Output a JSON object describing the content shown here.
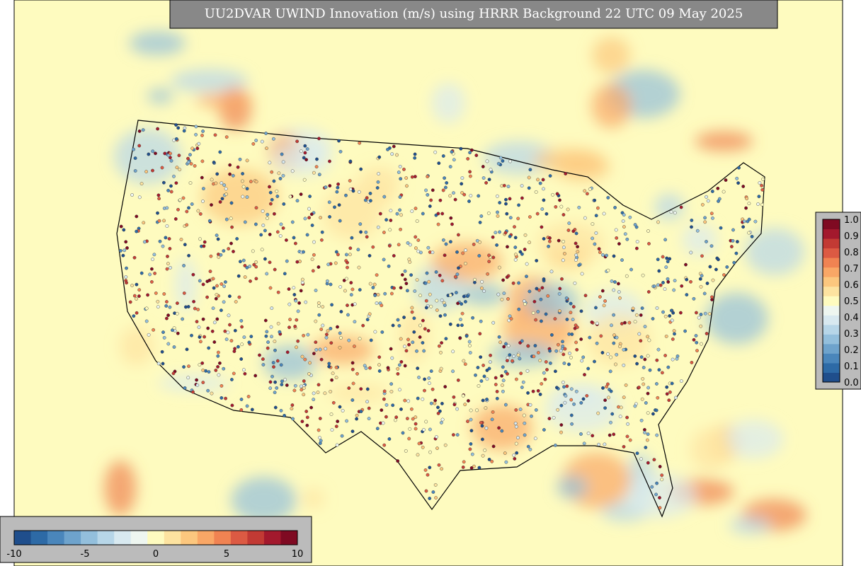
{
  "title": "UU2DVAR UWIND Innovation (m/s) using HRRR Background 22 UTC 09 May 2025",
  "horizontal_colorbar": {
    "ticks": [
      -10,
      -5,
      0,
      5,
      10
    ]
  },
  "vertical_colorbar": {
    "ticks": [
      "0.0",
      "0.1",
      "0.2",
      "0.3",
      "0.4",
      "0.5",
      "0.6",
      "0.7",
      "0.8",
      "0.9",
      "1.0"
    ]
  }
}
